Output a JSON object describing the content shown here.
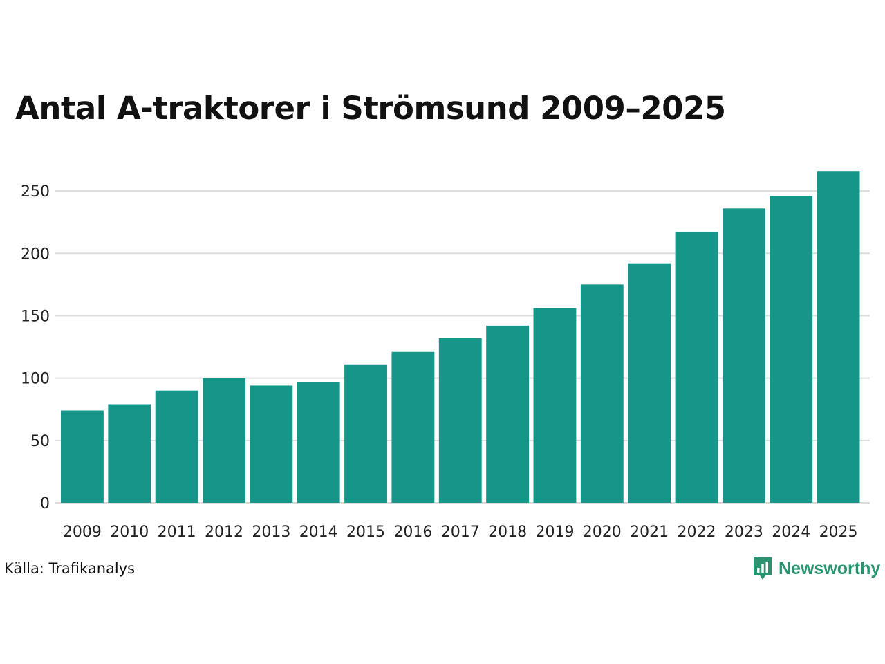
{
  "chart_data": {
    "type": "bar",
    "title": "Antal A-traktorer i Strömsund 2009–2025",
    "categories": [
      "2009",
      "2010",
      "2011",
      "2012",
      "2013",
      "2014",
      "2015",
      "2016",
      "2017",
      "2018",
      "2019",
      "2020",
      "2021",
      "2022",
      "2023",
      "2024",
      "2025"
    ],
    "values": [
      74,
      79,
      90,
      100,
      94,
      97,
      111,
      121,
      132,
      142,
      156,
      175,
      192,
      217,
      236,
      246,
      266
    ],
    "xlabel": "",
    "ylabel": "",
    "ylim": [
      0,
      270
    ],
    "yticks": [
      0,
      50,
      100,
      150,
      200,
      250
    ],
    "grid": true,
    "bar_color": "#159688",
    "grid_color": "#dddddd"
  },
  "footer": {
    "source": "Källa: Trafikanalys",
    "brand": "Newsworthy",
    "brand_color": "#2a9470",
    "brand_icon": "bar-chart-speech-bubble-icon"
  }
}
